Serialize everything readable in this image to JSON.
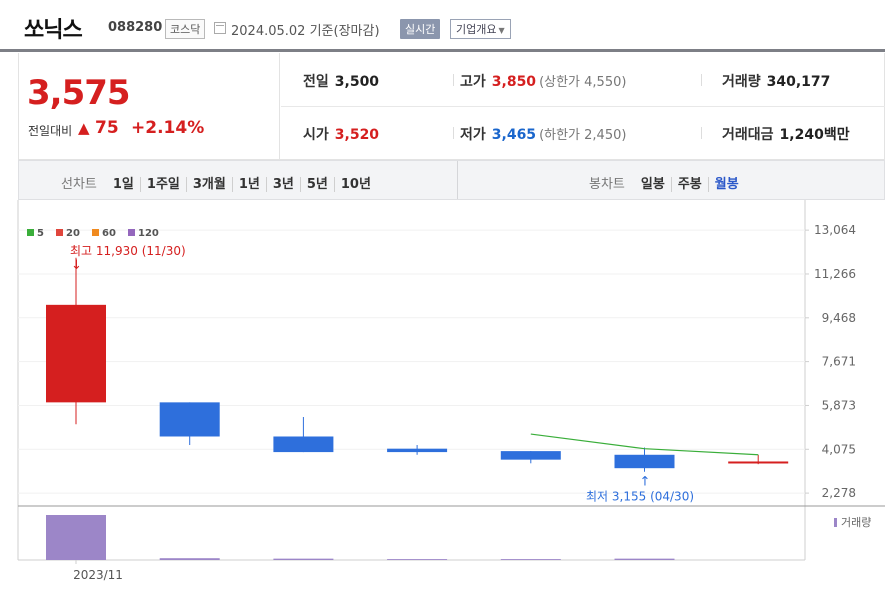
{
  "header": {
    "name": "쏘닉스",
    "code": "088280",
    "market": "코스닥",
    "date": "2024.05.02",
    "basis": "기준(장마감)",
    "realtime_label": "실시간",
    "company_label": "기업개요"
  },
  "quote": {
    "price": "3,575",
    "diff_label": "전일대비",
    "diff_arrow": "▲",
    "diff_value": "75",
    "diff_pct": "+2.14%",
    "prev_label": "전일",
    "prev_value": "3,500",
    "high_label": "고가",
    "high_value": "3,850",
    "upper_limit": "(상한가 4,550)",
    "volume_label": "거래량",
    "volume_value": "340,177",
    "open_label": "시가",
    "open_value": "3,520",
    "low_label": "저가",
    "low_value": "3,465",
    "lower_limit": "(하한가 2,450)",
    "amount_label": "거래대금",
    "amount_value": "1,240",
    "amount_unit": "백만"
  },
  "period_bar": {
    "line_label": "선차트",
    "line_options": [
      "1일",
      "1주일",
      "3개월",
      "1년",
      "3년",
      "5년",
      "10년"
    ],
    "candle_label": "봉차트",
    "candle_options": [
      "일봉",
      "주봉",
      "월봉"
    ],
    "candle_active": "월봉"
  },
  "colors": {
    "up": "#d51f1f",
    "down": "#2e6fdc",
    "ma5": "#3aae3a",
    "ma20": "#e0463c",
    "ma60": "#f08a1f",
    "ma120": "#9467bd",
    "volume_bar": "#9c86c8"
  },
  "chart_data": {
    "type": "candlestick",
    "title": "",
    "period": "monthly",
    "y_ticks": [
      "13,064",
      "11,266",
      "9,468",
      "7,671",
      "5,873",
      "4,075",
      "2,278"
    ],
    "y_tick_values": [
      13064,
      11266,
      9468,
      7671,
      5873,
      4075,
      2278
    ],
    "ylim": [
      1790,
      14300
    ],
    "x_labels": [
      "2023/11"
    ],
    "legend": [
      {
        "name": "5",
        "color": "#3aae3a"
      },
      {
        "name": "20",
        "color": "#e0463c"
      },
      {
        "name": "60",
        "color": "#f08a1f"
      },
      {
        "name": "120",
        "color": "#9467bd"
      }
    ],
    "candles": [
      {
        "period": "2023/11",
        "open": 6000,
        "high": 11930,
        "low": 5100,
        "close": 10000
      },
      {
        "period": "2023/12",
        "open": 6000,
        "high": 6000,
        "low": 4250,
        "close": 4600
      },
      {
        "period": "2024/01",
        "open": 4600,
        "high": 5400,
        "low": 3960,
        "close": 3960
      },
      {
        "period": "2024/02",
        "open": 4100,
        "high": 4250,
        "low": 3850,
        "close": 3960
      },
      {
        "period": "2024/03",
        "open": 4000,
        "high": 4000,
        "low": 3500,
        "close": 3650
      },
      {
        "period": "2024/04",
        "open": 3850,
        "high": 4150,
        "low": 3155,
        "close": 3300
      },
      {
        "period": "2024/05",
        "open": 3520,
        "high": 3850,
        "low": 3465,
        "close": 3575
      }
    ],
    "ma5": [
      null,
      null,
      null,
      null,
      4700,
      4100,
      3850
    ],
    "annotations": {
      "max_label": "최고 11,930 (11/30)",
      "min_label": "최저 3,155 (04/30)"
    },
    "volume_label": "거래량",
    "volumes": [
      100,
      4,
      3,
      2,
      2,
      3,
      0
    ]
  }
}
